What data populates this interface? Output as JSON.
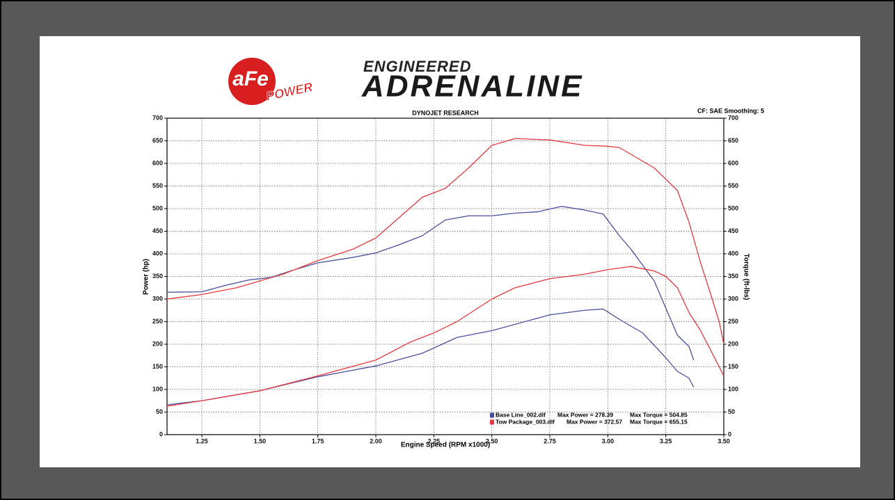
{
  "logo": {
    "brand": "aFe",
    "sub": "POWER"
  },
  "banner": {
    "top": "ENGINEERED",
    "main": "ADRENALINE"
  },
  "chart_data": {
    "type": "line",
    "title": "DYNOJET RESEARCH",
    "subtitle": "CF: SAE  Smoothing: 5",
    "x_label": "Engine Speed (RPM x1000)",
    "y_label": "Power (hp)",
    "y2_label": "Torque (ft-lbs)",
    "xlim": [
      1.1,
      3.5
    ],
    "xticks": [
      1.25,
      {
        "value": 1.5,
        "label": "1.50"
      },
      1.75,
      {
        "value": 2,
        "label": "2.00"
      },
      2.25,
      {
        "value": 2.5,
        "label": "2.50"
      },
      2.75,
      {
        "value": 3,
        "label": "3.00"
      },
      3.25,
      {
        "value": 3.5,
        "label": "3.50"
      }
    ],
    "ylim": [
      0,
      700
    ],
    "yticks": [
      0,
      50,
      100,
      150,
      200,
      250,
      300,
      350,
      400,
      450,
      500,
      550,
      600,
      650,
      700
    ],
    "y2lim": [
      0,
      700
    ],
    "y2ticks": [
      0,
      50,
      100,
      150,
      200,
      250,
      300,
      350,
      400,
      450,
      500,
      550,
      600,
      650,
      700
    ],
    "grid": true,
    "series": [
      {
        "name": "Base Line_002.dlf",
        "color": "#4a4f9c",
        "max_power": "Max Power = 278.39",
        "max_torque": "Max Torque = 504.85",
        "power_x": [
          1.1,
          1.25,
          1.5,
          1.75,
          2.0,
          2.2,
          2.35,
          2.5,
          2.75,
          2.9,
          2.98,
          3.05,
          3.15,
          3.25,
          3.3,
          3.35,
          3.37
        ],
        "power": [
          66,
          75,
          97,
          128,
          152,
          180,
          215,
          230,
          265,
          275,
          278,
          255,
          225,
          170,
          140,
          125,
          105
        ],
        "torque_x": [
          1.1,
          1.25,
          1.35,
          1.45,
          1.55,
          1.65,
          1.75,
          1.9,
          2.0,
          2.1,
          2.2,
          2.3,
          2.4,
          2.5,
          2.6,
          2.7,
          2.8,
          2.9,
          2.98,
          3.05,
          3.1,
          3.2,
          3.25,
          3.3,
          3.35,
          3.37
        ],
        "torque": [
          315,
          316,
          330,
          342,
          348,
          365,
          380,
          392,
          402,
          420,
          440,
          475,
          484,
          484,
          490,
          493,
          505,
          497,
          488,
          440,
          410,
          340,
          280,
          220,
          195,
          165
        ],
        "axis": "y2"
      },
      {
        "name": "Tow Package_003.dlf",
        "color": "#e8383f",
        "max_power": "Max Power = 372.57",
        "max_torque": "Max Torque = 655.15",
        "power_x": [
          1.1,
          1.25,
          1.5,
          1.75,
          2.0,
          2.15,
          2.25,
          2.35,
          2.5,
          2.6,
          2.75,
          2.9,
          3.0,
          3.1,
          3.2,
          3.25,
          3.3,
          3.35,
          3.4,
          3.45,
          3.5
        ],
        "power": [
          63,
          75,
          97,
          130,
          165,
          205,
          225,
          250,
          300,
          325,
          345,
          355,
          365,
          372,
          362,
          350,
          325,
          270,
          230,
          180,
          130
        ],
        "torque_x": [
          1.1,
          1.25,
          1.4,
          1.5,
          1.6,
          1.75,
          1.9,
          2.0,
          2.1,
          2.2,
          2.3,
          2.4,
          2.5,
          2.6,
          2.75,
          2.9,
          3.0,
          3.05,
          3.1,
          3.2,
          3.3,
          3.35,
          3.4,
          3.45,
          3.48,
          3.5
        ],
        "torque": [
          300,
          310,
          325,
          340,
          355,
          385,
          410,
          435,
          480,
          525,
          545,
          590,
          640,
          655,
          652,
          640,
          638,
          635,
          620,
          590,
          540,
          470,
          380,
          300,
          250,
          200
        ],
        "axis": "y2"
      }
    ]
  }
}
